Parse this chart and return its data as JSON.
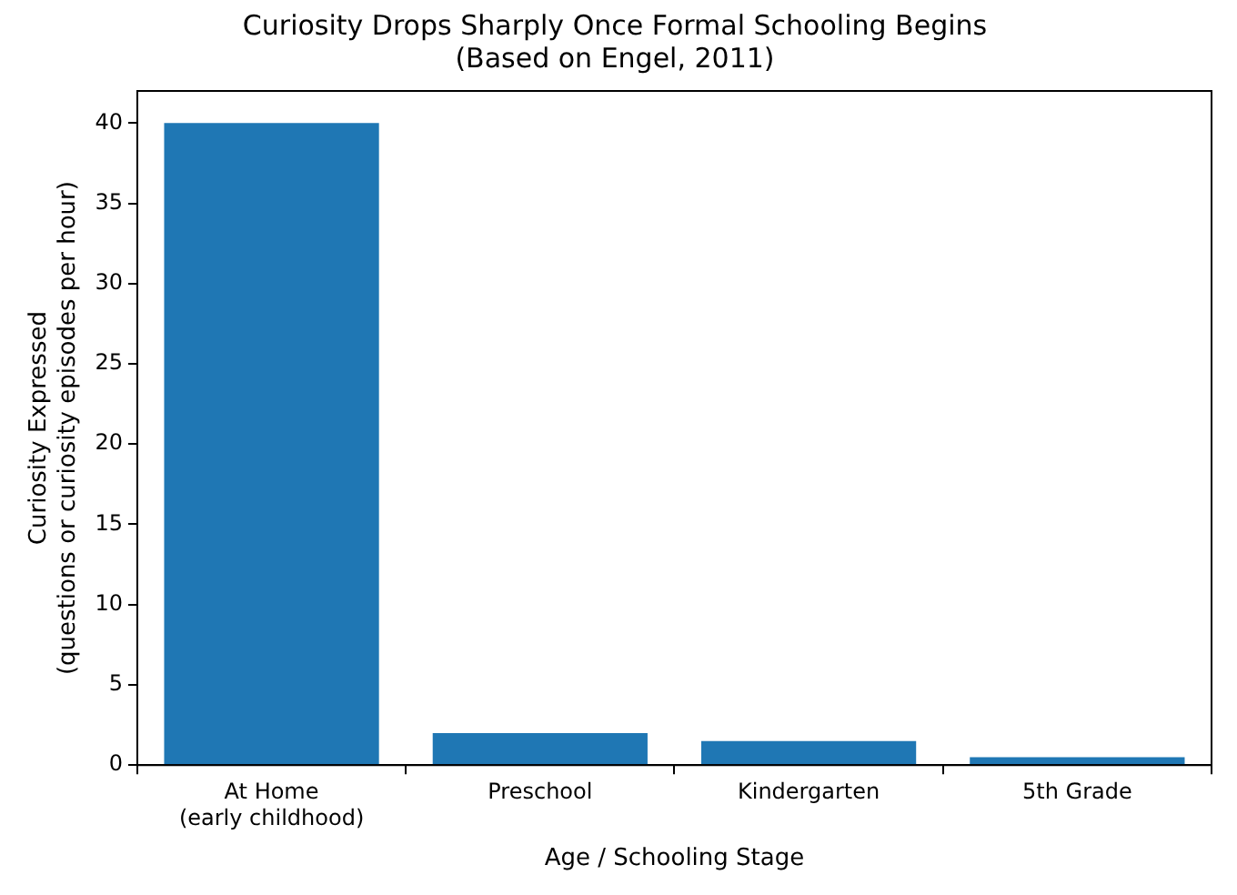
{
  "chart_data": {
    "type": "bar",
    "title": "Curiosity Drops Sharply Once Formal Schooling Begins\n(Based on Engel, 2011)",
    "xlabel": "Age / Schooling Stage",
    "ylabel": "Curiosity Expressed\n(questions or curiosity episodes per hour)",
    "categories": [
      "At Home\n(early childhood)",
      "Preschool",
      "Kindergarten",
      "5th Grade"
    ],
    "values": [
      40,
      2,
      1.5,
      0.5
    ],
    "color": "#1f77b4",
    "ylim": [
      0,
      42
    ],
    "yticks": [
      0,
      5,
      10,
      15,
      20,
      25,
      30,
      35,
      40
    ],
    "grid": false,
    "legend": false
  }
}
